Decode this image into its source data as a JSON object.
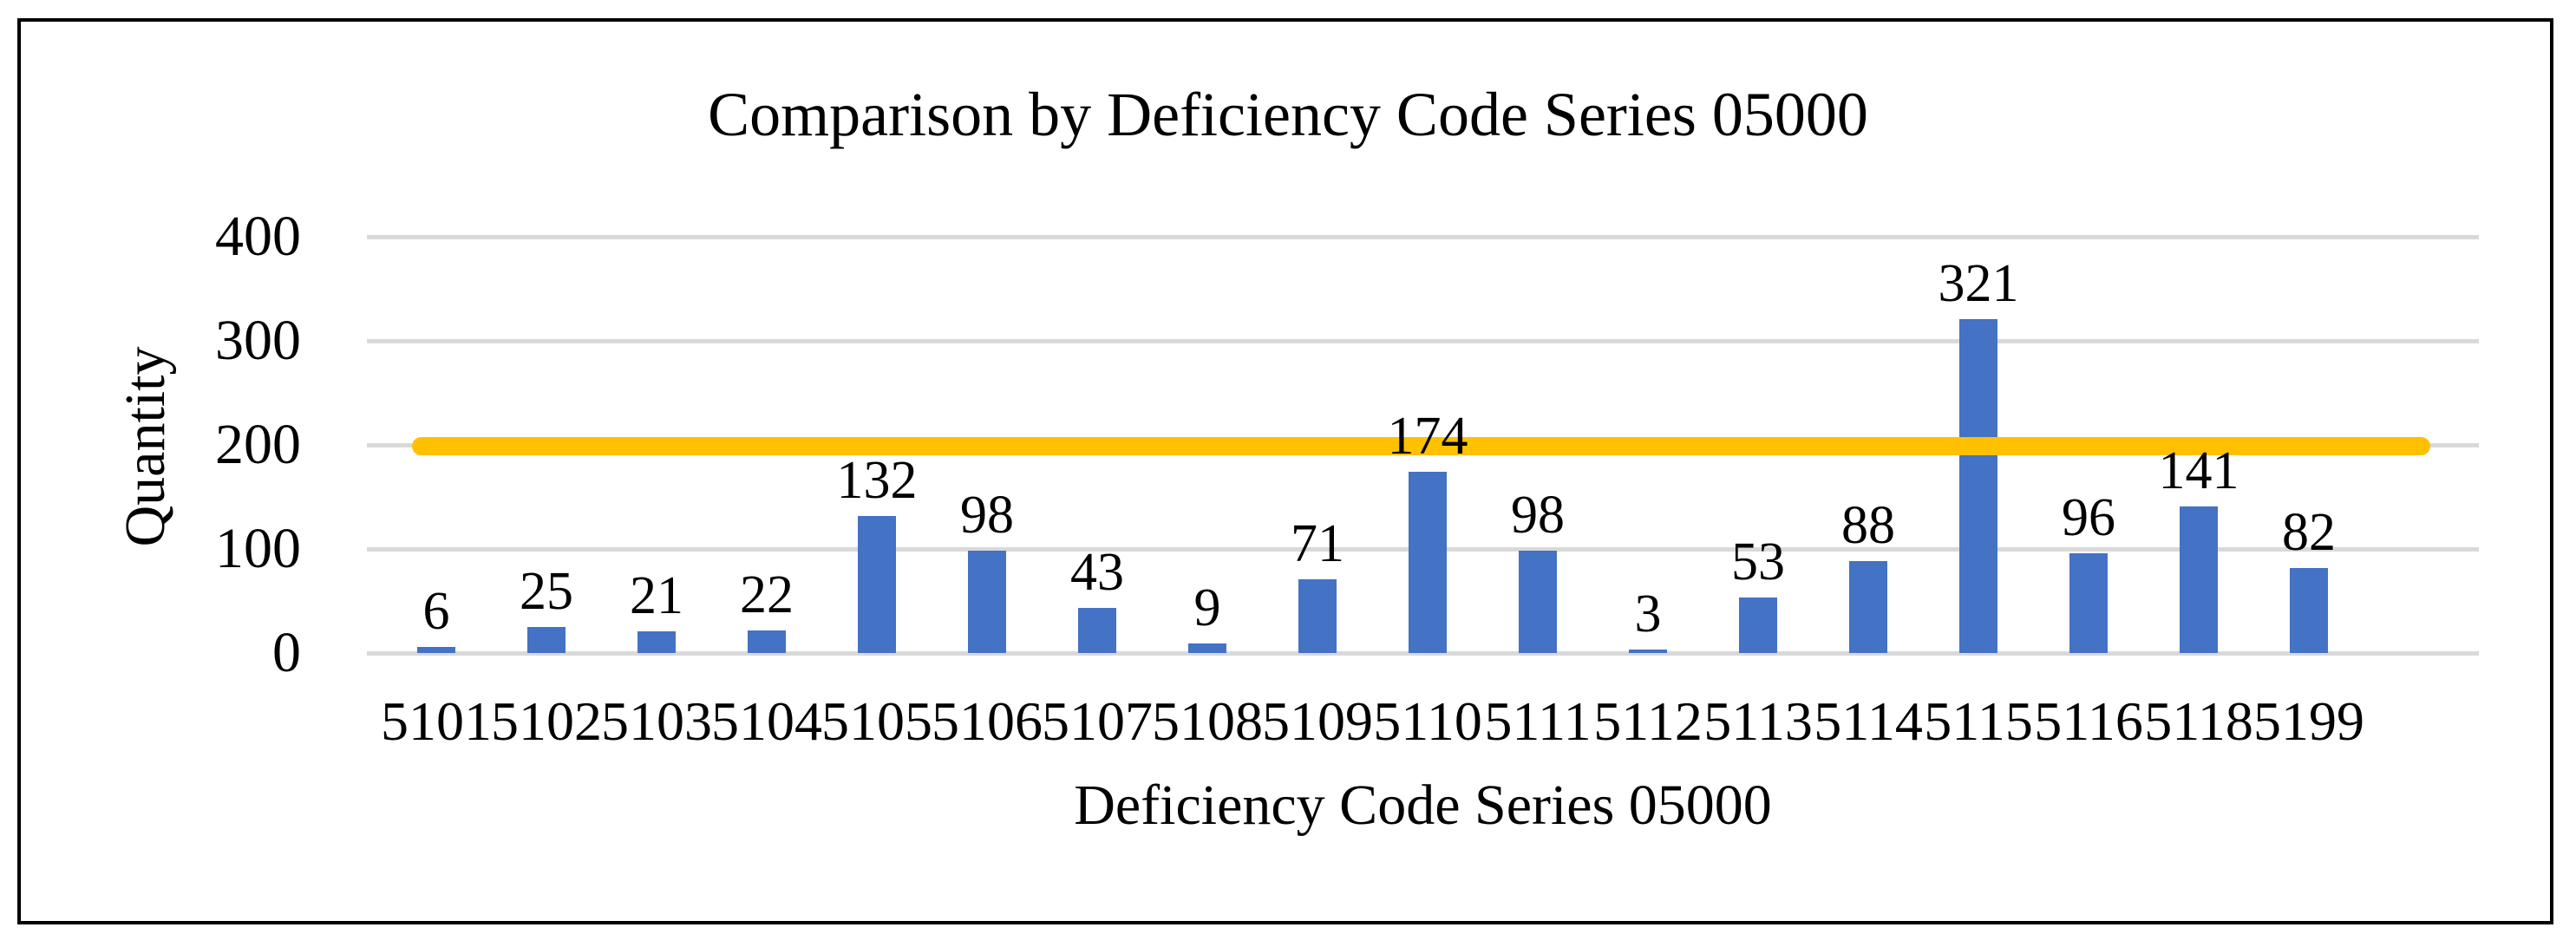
{
  "chart_data": {
    "type": "bar",
    "title": "Comparison by Deficiency Code Series 05000",
    "xlabel": "Deficiency Code Series 05000",
    "ylabel": "Quantity",
    "categories": [
      "5101",
      "5102",
      "5103",
      "5104",
      "5105",
      "5106",
      "5107",
      "5108",
      "5109",
      "5110",
      "5111",
      "5112",
      "5113",
      "5114",
      "5115",
      "5116",
      "5118",
      "5199"
    ],
    "values": [
      6,
      25,
      21,
      22,
      132,
      98,
      43,
      9,
      71,
      174,
      98,
      3,
      53,
      88,
      321,
      96,
      141,
      82
    ],
    "data_labels_shown": true,
    "yticks": [
      0,
      100,
      200,
      300,
      400
    ],
    "ylim": [
      0,
      400
    ],
    "grid": "horizontal-only",
    "legend": "none",
    "reference_line": {
      "value": 200,
      "style": "thick-rounded-line"
    },
    "colors": {
      "bar": "#4472C4",
      "reference_line": "#FFC000",
      "gridline": "#D9D9D9",
      "text": "#000000",
      "border": "#000000",
      "background": "#FFFFFF"
    }
  }
}
